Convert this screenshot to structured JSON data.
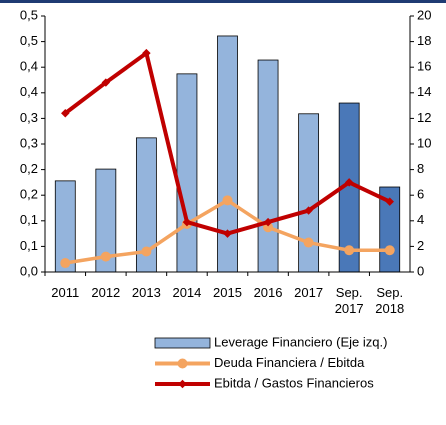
{
  "chart_data": {
    "type": "bar-line",
    "categories": [
      "2011",
      "2012",
      "2013",
      "2014",
      "2015",
      "2016",
      "2017",
      "Sep. 2017",
      "Sep. 2018"
    ],
    "series": [
      {
        "name": "Leverage Financiero (Eje izq.)",
        "type": "bar",
        "color": "#94b4dc",
        "colors": [
          "#94b4dc",
          "#94b4dc",
          "#94b4dc",
          "#94b4dc",
          "#94b4dc",
          "#94b4dc",
          "#94b4dc",
          "#4a78b8",
          "#4a78b8"
        ],
        "values": [
          0.178,
          0.201,
          0.262,
          0.387,
          0.461,
          0.414,
          0.309,
          0.33,
          0.166
        ]
      },
      {
        "name": "Deuda Financiera / Ebitda",
        "type": "line",
        "axis": "y2",
        "color": "#f4a460",
        "values": [
          0.7,
          1.2,
          1.6,
          3.75,
          5.6,
          3.5,
          2.3,
          1.7,
          1.7
        ]
      },
      {
        "name": "Ebitda / Gastos Financieros",
        "type": "line",
        "axis": "y2",
        "color": "#c00000",
        "values": [
          12.4,
          14.8,
          17.1,
          3.9,
          3.0,
          3.9,
          4.8,
          7.0,
          5.5
        ]
      }
    ],
    "ylim": [
      0,
      0.5
    ],
    "yticks": [
      {
        "value": 0,
        "label": "0,0"
      },
      {
        "value": 0.05,
        "label": "0,1"
      },
      {
        "value": 0.1,
        "label": "0,1"
      },
      {
        "value": 0.15,
        "label": "0,2"
      },
      {
        "value": 0.2,
        "label": "0,2"
      },
      {
        "value": 0.25,
        "label": "0,3"
      },
      {
        "value": 0.3,
        "label": "0,3"
      },
      {
        "value": 0.35,
        "label": "0,4"
      },
      {
        "value": 0.4,
        "label": "0,4"
      },
      {
        "value": 0.45,
        "label": "0,5"
      },
      {
        "value": 0.5,
        "label": "0,5"
      }
    ],
    "y2lim": [
      0,
      20
    ],
    "y2ticks": [
      0,
      2,
      4,
      6,
      8,
      10,
      12,
      14,
      16,
      18,
      20
    ],
    "legend": "bottom"
  }
}
